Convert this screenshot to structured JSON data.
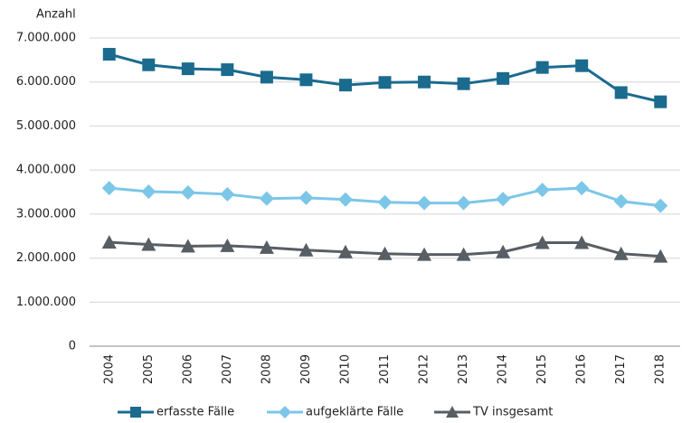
{
  "chart_data": {
    "type": "line",
    "y_label": "Anzahl",
    "categories": [
      "2004",
      "2005",
      "2006",
      "2007",
      "2008",
      "2009",
      "2010",
      "2011",
      "2012",
      "2013",
      "2014",
      "2015",
      "2016",
      "2017",
      "2018"
    ],
    "series": [
      {
        "name": "erfasste Fälle",
        "color": "#1b6b8f",
        "marker": "square",
        "values": [
          6630000,
          6390000,
          6300000,
          6280000,
          6110000,
          6050000,
          5930000,
          5990000,
          6000000,
          5960000,
          6080000,
          6330000,
          6370000,
          5760000,
          5550000
        ]
      },
      {
        "name": "aufgeklärte Fälle",
        "color": "#7cc6e8",
        "marker": "diamond",
        "values": [
          3590000,
          3510000,
          3490000,
          3450000,
          3350000,
          3370000,
          3330000,
          3270000,
          3250000,
          3250000,
          3340000,
          3550000,
          3590000,
          3290000,
          3190000
        ]
      },
      {
        "name": "TV insgesamt",
        "color": "#575e64",
        "marker": "triangle",
        "values": [
          2360000,
          2310000,
          2270000,
          2280000,
          2240000,
          2180000,
          2140000,
          2100000,
          2080000,
          2080000,
          2140000,
          2350000,
          2350000,
          2100000,
          2040000
        ]
      }
    ],
    "ylim": [
      0,
      7000000
    ],
    "yticks": [
      0,
      {
        "value": 1000000,
        "label": "1.000.000"
      },
      {
        "value": 2000000,
        "label": "2.000.000"
      },
      {
        "value": 3000000,
        "label": "3.000.000"
      },
      {
        "value": 4000000,
        "label": "4.000.000"
      },
      {
        "value": 5000000,
        "label": "5.000.000"
      },
      {
        "value": 6000000,
        "label": "6.000.000"
      },
      {
        "value": 7000000,
        "label": "7.000.000"
      }
    ],
    "grid": true
  }
}
